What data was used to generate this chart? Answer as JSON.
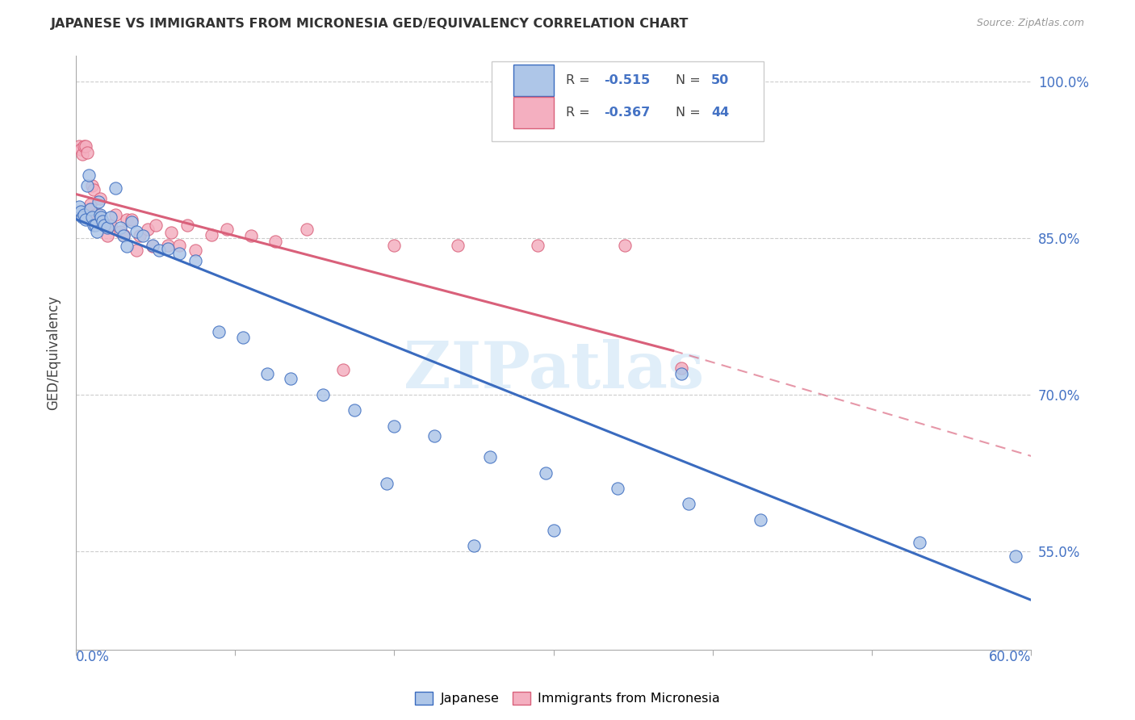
{
  "title": "JAPANESE VS IMMIGRANTS FROM MICRONESIA GED/EQUIVALENCY CORRELATION CHART",
  "source": "Source: ZipAtlas.com",
  "ylabel": "GED/Equivalency",
  "xmin": 0.0,
  "xmax": 0.6,
  "ymin": 0.455,
  "ymax": 1.025,
  "yticks": [
    0.55,
    0.7,
    0.85,
    1.0
  ],
  "ytick_labels": [
    "55.0%",
    "70.0%",
    "85.0%",
    "100.0%"
  ],
  "watermark": "ZIPatlas",
  "color_japanese": "#aec6e8",
  "color_micronesia": "#f4afc0",
  "color_line_japanese": "#3a6bbf",
  "color_line_micronesia": "#d9607a",
  "color_axis_text": "#4472c4",
  "background_color": "#ffffff",
  "line_j_x0": 0.0,
  "line_j_y0": 0.868,
  "line_j_x1": 0.6,
  "line_j_y1": 0.503,
  "line_m_x0": 0.0,
  "line_m_y0": 0.892,
  "line_m_x1_solid": 0.375,
  "line_m_y1_solid": 0.742,
  "line_m_x1_dash": 0.6,
  "line_m_y1_dash": 0.641,
  "japanese_x": [
    0.002,
    0.003,
    0.004,
    0.005,
    0.006,
    0.007,
    0.008,
    0.009,
    0.01,
    0.011,
    0.012,
    0.013,
    0.014,
    0.015,
    0.016,
    0.017,
    0.018,
    0.02,
    0.022,
    0.025,
    0.028,
    0.03,
    0.032,
    0.035,
    0.038,
    0.042,
    0.048,
    0.052,
    0.058,
    0.065,
    0.075,
    0.09,
    0.105,
    0.12,
    0.135,
    0.155,
    0.175,
    0.2,
    0.225,
    0.26,
    0.295,
    0.34,
    0.385,
    0.43,
    0.38,
    0.53,
    0.59,
    0.3,
    0.25,
    0.195
  ],
  "japanese_y": [
    0.88,
    0.875,
    0.87,
    0.872,
    0.868,
    0.9,
    0.91,
    0.878,
    0.87,
    0.862,
    0.862,
    0.856,
    0.885,
    0.872,
    0.87,
    0.866,
    0.862,
    0.86,
    0.87,
    0.898,
    0.86,
    0.852,
    0.842,
    0.865,
    0.856,
    0.852,
    0.843,
    0.838,
    0.84,
    0.835,
    0.828,
    0.76,
    0.755,
    0.72,
    0.715,
    0.7,
    0.685,
    0.67,
    0.66,
    0.64,
    0.625,
    0.61,
    0.595,
    0.58,
    0.72,
    0.558,
    0.545,
    0.57,
    0.555,
    0.615
  ],
  "micronesia_x": [
    0.002,
    0.003,
    0.004,
    0.005,
    0.006,
    0.007,
    0.008,
    0.009,
    0.01,
    0.011,
    0.012,
    0.013,
    0.014,
    0.015,
    0.016,
    0.018,
    0.02,
    0.022,
    0.025,
    0.028,
    0.03,
    0.032,
    0.035,
    0.04,
    0.045,
    0.05,
    0.058,
    0.065,
    0.075,
    0.085,
    0.095,
    0.11,
    0.125,
    0.145,
    0.168,
    0.2,
    0.24,
    0.29,
    0.345,
    0.38,
    0.06,
    0.07,
    0.048,
    0.038
  ],
  "micronesia_y": [
    0.938,
    0.935,
    0.93,
    0.938,
    0.938,
    0.932,
    0.878,
    0.882,
    0.9,
    0.896,
    0.872,
    0.873,
    0.868,
    0.888,
    0.867,
    0.862,
    0.852,
    0.862,
    0.872,
    0.856,
    0.853,
    0.868,
    0.868,
    0.852,
    0.858,
    0.862,
    0.843,
    0.843,
    0.838,
    0.853,
    0.858,
    0.852,
    0.847,
    0.858,
    0.724,
    0.843,
    0.843,
    0.843,
    0.843,
    0.725,
    0.855,
    0.862,
    0.842,
    0.838
  ]
}
